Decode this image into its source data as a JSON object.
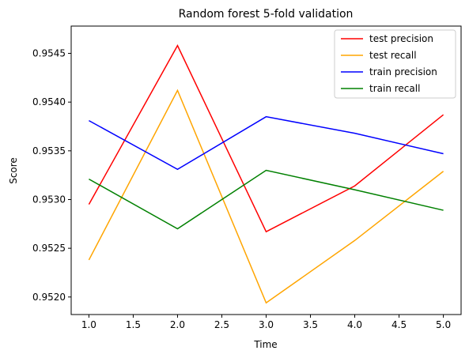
{
  "chart_data": {
    "type": "line",
    "title": "Random forest 5-fold validation",
    "xlabel": "Time",
    "ylabel": "Score",
    "x": [
      1.0,
      2.0,
      3.0,
      4.0,
      5.0
    ],
    "xlim": [
      0.8,
      5.2
    ],
    "ylim": [
      0.95182,
      0.95478
    ],
    "xticks": [
      "1.0",
      "1.5",
      "2.0",
      "2.5",
      "3.0",
      "3.5",
      "4.0",
      "4.5",
      "5.0"
    ],
    "yticks": [
      "0.9520",
      "0.9525",
      "0.9530",
      "0.9535",
      "0.9540",
      "0.9545"
    ],
    "legend_position": "top-right",
    "grid": false,
    "series": [
      {
        "name": "test precision",
        "color": "#ff0000",
        "values": [
          0.95295,
          0.95458,
          0.95267,
          0.95314,
          0.95387
        ]
      },
      {
        "name": "test recall",
        "color": "#ffa500",
        "values": [
          0.95238,
          0.95412,
          0.95194,
          0.95258,
          0.95329
        ]
      },
      {
        "name": "train precision",
        "color": "#0000ff",
        "values": [
          0.95381,
          0.95331,
          0.95385,
          0.95368,
          0.95347
        ]
      },
      {
        "name": "train recall",
        "color": "#008000",
        "values": [
          0.95321,
          0.9527,
          0.9533,
          0.9531,
          0.95289
        ]
      }
    ]
  }
}
